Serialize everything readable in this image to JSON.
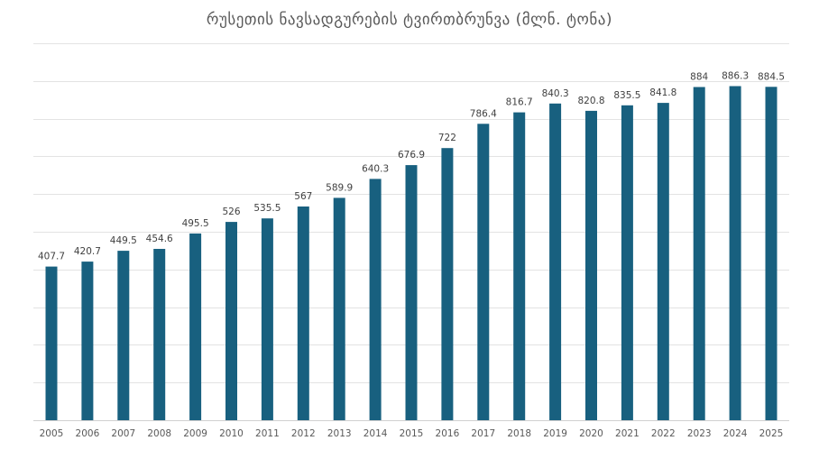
{
  "chart_data": {
    "type": "bar",
    "title": "რუსეთის ნავსადგურების ტვირთბრუნვა (მლნ. ტონა)",
    "categories": [
      "2005",
      "2006",
      "2007",
      "2008",
      "2009",
      "2010",
      "2011",
      "2012",
      "2013",
      "2014",
      "2015",
      "2016",
      "2017",
      "2018",
      "2019",
      "2020",
      "2021",
      "2022",
      "2023",
      "2024",
      "2025"
    ],
    "values": [
      407.7,
      420.7,
      449.5,
      454.6,
      495.5,
      526,
      535.5,
      567,
      589.9,
      640.3,
      676.9,
      722,
      786.4,
      816.7,
      840.3,
      820.8,
      835.5,
      841.8,
      884,
      886.3,
      884.5
    ],
    "value_labels": [
      "407.7",
      "420.7",
      "449.5",
      "454.6",
      "495.5",
      "526",
      "535.5",
      "567",
      "589.9",
      "640.3",
      "676.9",
      "722",
      "786.4",
      "816.7",
      "840.3",
      "820.8",
      "835.5",
      "841.8",
      "884",
      "886.3",
      "884.5"
    ],
    "ylim": [
      0,
      1000
    ],
    "grid": true,
    "legend": "none",
    "bar_color": "#18607f"
  }
}
